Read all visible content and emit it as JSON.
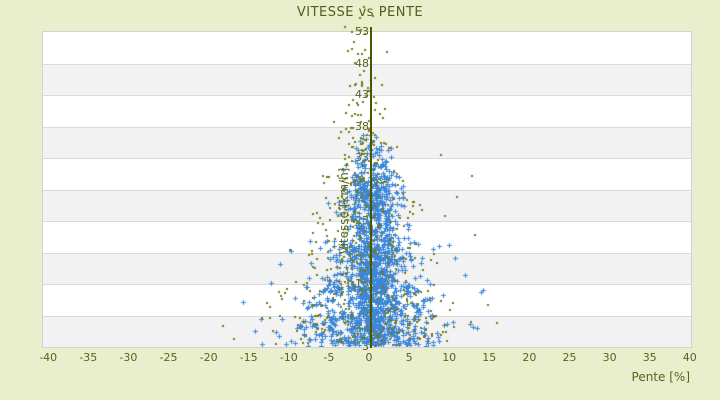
{
  "title": "VITESSE vs PENTE",
  "colors": {
    "page_background": "#e9efcc",
    "plot_background": "#ffffff",
    "band_alt": "#f2f2f2",
    "gridline": "#dadada",
    "text_olive": "#55641e",
    "title_olive": "#4f5e1c",
    "axis_line": "#4b5400",
    "series_blue": "#3c87d9",
    "series_olive": "#75790e"
  },
  "chart_data": {
    "type": "scatter",
    "title": "VITESSE vs PENTE",
    "xlabel": "Pente [%]",
    "ylabel": "Vitesse [km/h]",
    "xlim": [
      -41,
      40
    ],
    "ylim": [
      3,
      53
    ],
    "x_ticks": [
      -40,
      -35,
      -30,
      -25,
      -20,
      -15,
      -10,
      -5,
      0,
      5,
      10,
      15,
      20,
      25,
      30,
      35,
      40
    ],
    "y_ticks": [
      3,
      8,
      13,
      18,
      23,
      28,
      33,
      38,
      43,
      48,
      53
    ],
    "grid": "horizontal-bands-alternating",
    "legend": "none",
    "zero_axis_line_x": 0,
    "series": [
      {
        "name": "blue-series",
        "color": "#3c87d9",
        "marker": "plus",
        "seed": 1234567,
        "clusters": [
          {
            "cx": 0.5,
            "hw": 3.5,
            "y": [
              3.5,
              30
            ],
            "n": 620
          },
          {
            "cx": 0.5,
            "hw": 6,
            "y": [
              3.5,
              26
            ],
            "n": 330
          },
          {
            "cx": 0,
            "hw": 9,
            "y": [
              3.5,
              20
            ],
            "n": 260
          },
          {
            "cx": -0.5,
            "hw": 12,
            "y": [
              3.2,
              13
            ],
            "n": 190
          },
          {
            "cx": -1,
            "hw": 15,
            "y": [
              3.2,
              8
            ],
            "n": 90
          },
          {
            "cx": 0.5,
            "hw": 4.5,
            "y": [
              26,
              32
            ],
            "n": 110
          },
          {
            "cx": 0.5,
            "hw": 3,
            "y": [
              32,
              35
            ],
            "n": 32
          },
          {
            "cx": 0,
            "hw": 2,
            "y": [
              35,
              37
            ],
            "n": 7
          }
        ],
        "points": [
          [
            -15.8,
            10.2
          ],
          [
            -14.3,
            5.6
          ],
          [
            13.8,
            11.7
          ],
          [
            12.9,
            6.2
          ],
          [
            14.1,
            12.1
          ],
          [
            -12.4,
            13.1
          ],
          [
            11.9,
            14.4
          ],
          [
            -11.2,
            16.2
          ],
          [
            10.6,
            17.1
          ],
          [
            -9.8,
            18.3
          ],
          [
            9.9,
            19.2
          ]
        ]
      },
      {
        "name": "olive-series",
        "color": "#75790e",
        "marker": "dot",
        "seed": 98765,
        "clusters": [
          {
            "cx": -1,
            "hw": 15,
            "y": [
              3.2,
              8
            ],
            "n": 120
          },
          {
            "cx": -0.8,
            "hw": 12.5,
            "y": [
              8,
              14
            ],
            "n": 95
          },
          {
            "cx": -0.6,
            "hw": 10,
            "y": [
              14,
              20
            ],
            "n": 85
          },
          {
            "cx": -0.5,
            "hw": 8,
            "y": [
              20,
              26
            ],
            "n": 72
          },
          {
            "cx": -0.5,
            "hw": 6,
            "y": [
              26,
              31
            ],
            "n": 55
          },
          {
            "cx": -0.6,
            "hw": 4.8,
            "y": [
              31,
              36
            ],
            "n": 40
          },
          {
            "cx": -1,
            "hw": 3.8,
            "y": [
              36,
              42
            ],
            "n": 30
          },
          {
            "cx": -1.2,
            "hw": 2.8,
            "y": [
              42,
              47.5
            ],
            "n": 17
          },
          {
            "cx": -1,
            "hw": 2,
            "y": [
              47.5,
              53.5
            ],
            "n": 11
          }
        ],
        "points": [
          [
            8.8,
            33.4
          ],
          [
            9.4,
            23.8
          ],
          [
            12.7,
            30.2
          ],
          [
            0.4,
            55.6
          ],
          [
            -1.3,
            55.2
          ],
          [
            -0.8,
            56.9
          ],
          [
            -3.1,
            53.8
          ],
          [
            13.1,
            20.7
          ],
          [
            -18.3,
            6.4
          ],
          [
            14.7,
            9.7
          ],
          [
            10.9,
            26.8
          ],
          [
            2.1,
            49.9
          ],
          [
            -16.9,
            4.2
          ],
          [
            15.8,
            6.8
          ]
        ]
      }
    ]
  }
}
